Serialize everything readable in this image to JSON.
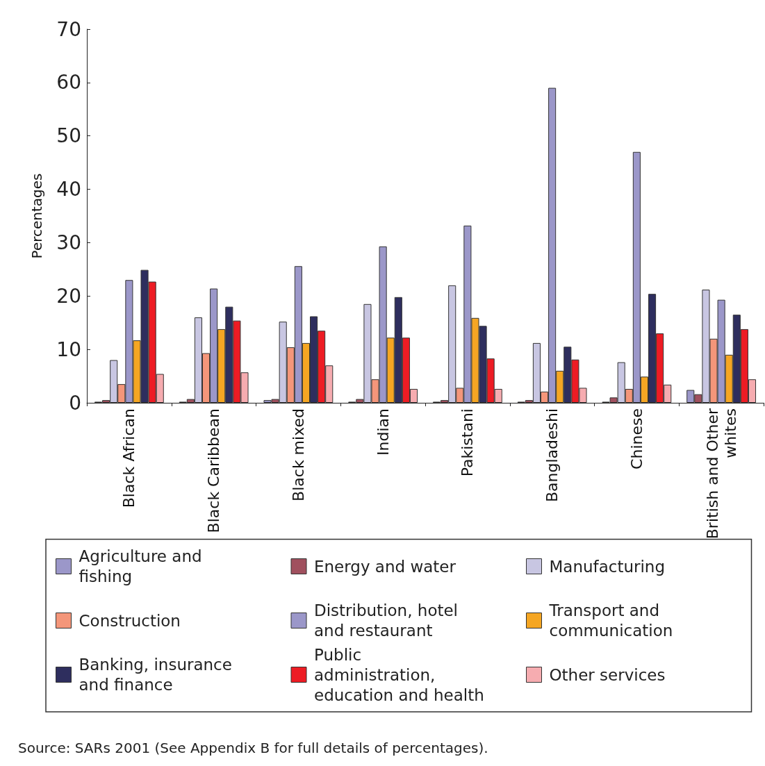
{
  "chart_data": {
    "type": "bar",
    "ylabel": "Percentages",
    "categories": [
      "Black African",
      "Black Caribbean",
      "Black mixed",
      "Indian",
      "Pakistani",
      "Bangladeshi",
      "Chinese",
      "British and Other whites"
    ],
    "series": [
      {
        "name": "Agriculture and fishing",
        "color": "#9b97c9",
        "values": [
          0.2,
          0.2,
          0.5,
          0.2,
          0.2,
          0.2,
          0.2,
          2.4
        ]
      },
      {
        "name": "Energy and water",
        "color": "#a0505e",
        "values": [
          0.5,
          0.7,
          0.7,
          0.7,
          0.5,
          0.5,
          1,
          1.6
        ]
      },
      {
        "name": "Manufacturing",
        "color": "#c8c6e2",
        "values": [
          8,
          16,
          15.2,
          18.5,
          22,
          11.2,
          7.6,
          21.2
        ]
      },
      {
        "name": "Construction",
        "color": "#f4967a",
        "values": [
          3.5,
          9.3,
          10.4,
          4.4,
          2.8,
          2.1,
          2.6,
          12
        ]
      },
      {
        "name": "Distribution, hotel and restaurant",
        "color": "#9b97c9",
        "values": [
          23,
          21.4,
          25.6,
          29.3,
          33.2,
          59,
          47,
          19.3
        ]
      },
      {
        "name": "Transport and communication",
        "color": "#f5a623",
        "values": [
          11.7,
          13.8,
          11.2,
          12.2,
          15.9,
          6,
          4.9,
          9
        ]
      },
      {
        "name": "Banking, insurance and finance",
        "color": "#2e2e5e",
        "values": [
          24.9,
          18,
          16.2,
          19.8,
          14.4,
          10.5,
          20.4,
          16.5
        ]
      },
      {
        "name": "Public administration, education and health",
        "color": "#ed1c24",
        "values": [
          22.7,
          15.4,
          13.5,
          12.2,
          8.3,
          8.1,
          13,
          13.8
        ]
      },
      {
        "name": "Other services",
        "color": "#f6acb0",
        "values": [
          5.4,
          5.7,
          7,
          2.6,
          2.6,
          2.8,
          3.4,
          4.4
        ]
      }
    ],
    "ylim": [
      0,
      70
    ],
    "yticks": [
      0,
      10,
      20,
      30,
      40,
      50,
      60,
      70
    ],
    "grid": false,
    "legend": "bottom",
    "annotations": [
      "Source: SARs 2001 (See Appendix B for full details of percentages)."
    ]
  }
}
